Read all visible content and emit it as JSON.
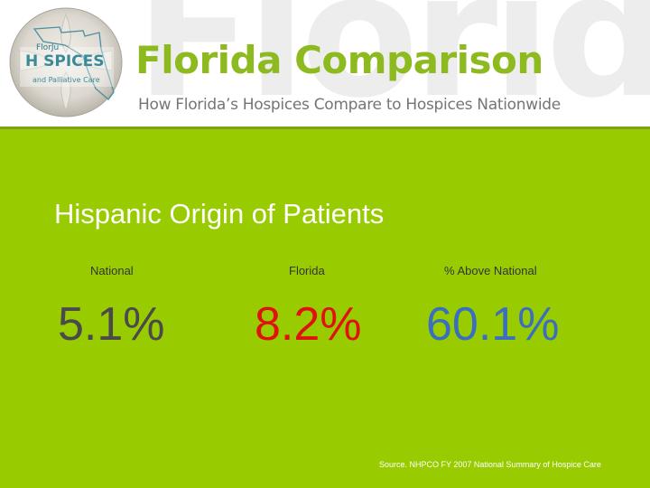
{
  "header": {
    "watermark": "Florida",
    "title": "Florida Comparison",
    "subtitle": "How Florida’s Hospices Compare to Hospices Nationwide",
    "logo": {
      "line1": "FlorJu",
      "line2": "H SPICES",
      "line3": "and Palliative Care"
    }
  },
  "slide": {
    "heading": "Hispanic Origin of Patients",
    "columns": [
      {
        "label": "National",
        "value": "5.1%",
        "color": "#4a4a4a"
      },
      {
        "label": "Florida",
        "value": "8.2%",
        "color": "#e0120f"
      },
      {
        "label": "% Above National",
        "value": "60.1%",
        "color": "#3a6fbf"
      }
    ],
    "source": "Source. NHPCO FY 2007 National Summary of Hospice Care"
  },
  "colors": {
    "header_bg": "#ffffff",
    "main_bg": "#99cc00",
    "title": "#8dba1f",
    "subtitle": "#757575",
    "heading": "#ffffff"
  }
}
